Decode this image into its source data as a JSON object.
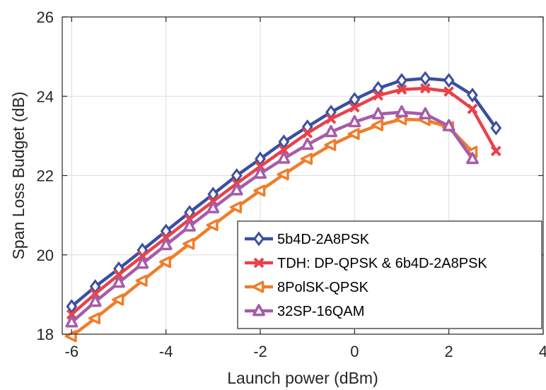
{
  "chart_data": {
    "type": "line",
    "xlabel": "Launch power (dBm)",
    "ylabel": "Span Loss Budget (dB)",
    "xlim": [
      -6.2,
      4
    ],
    "ylim": [
      18,
      26
    ],
    "xticks": [
      -6,
      -4,
      -2,
      0,
      2,
      4
    ],
    "yticks": [
      18,
      20,
      22,
      24,
      26
    ],
    "xtick_labels": [
      "-6",
      "-4",
      "-2",
      "0",
      "2",
      "4"
    ],
    "ytick_labels": [
      "18",
      "20",
      "22",
      "24",
      "26"
    ],
    "grid": true,
    "legend_position": "bottom-right",
    "series": [
      {
        "name": "5b4D-2A8PSK",
        "color": "#3a4fa0",
        "marker": "diamond",
        "x": [
          -6,
          -5.5,
          -5,
          -4.5,
          -4,
          -3.5,
          -3,
          -2.5,
          -2,
          -1.5,
          -1,
          -0.5,
          0,
          0.5,
          1,
          1.5,
          2,
          2.5,
          3
        ],
        "y": [
          18.7,
          19.2,
          19.65,
          20.12,
          20.6,
          21.07,
          21.53,
          22.0,
          22.42,
          22.85,
          23.23,
          23.6,
          23.92,
          24.2,
          24.4,
          24.45,
          24.4,
          24.03,
          23.2
        ]
      },
      {
        "name": "TDH: DP-QPSK & 6b4D-2A8PSK",
        "color": "#e8424a",
        "marker": "x",
        "x": [
          -6,
          -5.5,
          -5,
          -4.5,
          -4,
          -3.5,
          -3,
          -2.5,
          -2,
          -1.5,
          -1,
          -0.5,
          0,
          0.5,
          1,
          1.5,
          2,
          2.5,
          3
        ],
        "y": [
          18.5,
          19.02,
          19.5,
          19.97,
          20.43,
          20.9,
          21.35,
          21.8,
          22.23,
          22.65,
          23.07,
          23.43,
          23.72,
          24.02,
          24.17,
          24.2,
          24.12,
          23.68,
          22.62
        ]
      },
      {
        "name": "8PolSK-QPSK",
        "color": "#f07d2a",
        "marker": "triangle-left",
        "x": [
          -6,
          -5.5,
          -5,
          -4.5,
          -4,
          -3.5,
          -3,
          -2.5,
          -2,
          -1.5,
          -1,
          -0.5,
          0,
          0.5,
          1,
          1.5,
          2,
          2.5
        ],
        "y": [
          17.95,
          18.4,
          18.87,
          19.35,
          19.82,
          20.28,
          20.75,
          21.2,
          21.62,
          22.03,
          22.42,
          22.77,
          23.05,
          23.27,
          23.42,
          23.4,
          23.22,
          22.6
        ]
      },
      {
        "name": "32SP-16QAM",
        "color": "#a65ca8",
        "marker": "triangle-up",
        "x": [
          -6,
          -5.5,
          -5,
          -4.5,
          -4,
          -3.5,
          -3,
          -2.5,
          -2,
          -1.5,
          -1,
          -0.5,
          0,
          0.5,
          1,
          1.5,
          2,
          2.5
        ],
        "y": [
          18.3,
          18.82,
          19.3,
          19.78,
          20.25,
          20.72,
          21.18,
          21.63,
          22.05,
          22.43,
          22.78,
          23.1,
          23.35,
          23.55,
          23.6,
          23.55,
          23.25,
          22.42
        ]
      }
    ]
  }
}
